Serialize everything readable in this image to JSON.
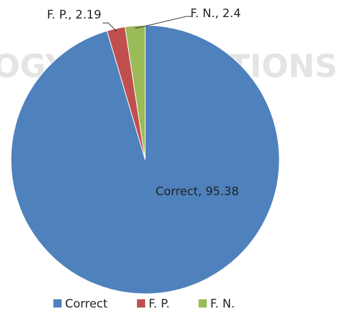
{
  "chart_data": {
    "type": "pie",
    "watermark": "OGY PUBLICATIONS",
    "categories": [
      "Correct",
      "F. P.",
      "F. N."
    ],
    "values": [
      95.38,
      2.19,
      2.4
    ],
    "value_labels": [
      "Correct, 95.38",
      "F. P., 2.19",
      "F. N., 2.4"
    ],
    "colors": [
      "#4f81bd",
      "#c0504d",
      "#9bbb59"
    ],
    "legend": "bottom"
  }
}
